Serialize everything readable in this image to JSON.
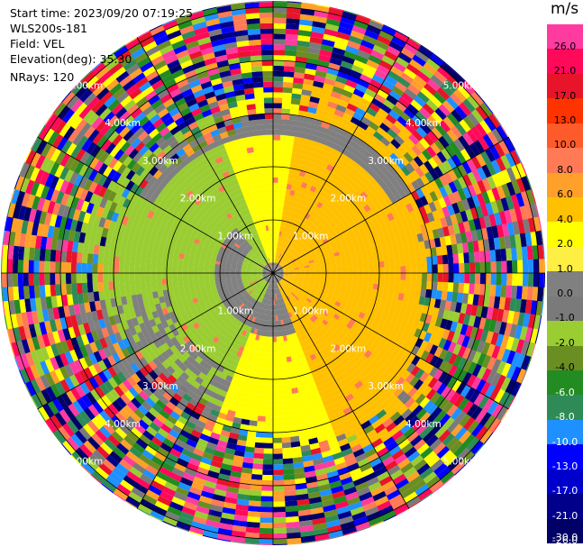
{
  "header": {
    "start_time": "Start time: 2023/09/20 07:19:25",
    "site": "WLS200s-181",
    "field": "Field: VEL",
    "elevation": "Elevation(deg): 35.30",
    "nrays": "NRays: 120"
  },
  "colorbar": {
    "unit": "m/s",
    "ticks": [
      "26.0",
      "21.0",
      "17.0",
      "13.0",
      "10.0",
      "8.0",
      "6.0",
      "4.0",
      "2.0",
      "1.0",
      "0.0",
      "-1.0",
      "-2.0",
      "-4.0",
      "-6.0",
      "-8.0",
      "-10.0",
      "-13.0",
      "-17.0",
      "-21.0",
      "-26.0",
      "-30.0"
    ],
    "colors": [
      "#ff3ba0",
      "#ff0a5a",
      "#e8142a",
      "#ff3300",
      "#ff5a2a",
      "#ff7a55",
      "#ffa02a",
      "#ffc000",
      "#ffff00",
      "#ffee44",
      "#808080",
      "#7a7a7a",
      "#9acd32",
      "#6b8e23",
      "#228b22",
      "#2e8b57",
      "#1e90ff",
      "#0000ff",
      "#0000cd",
      "#00008b",
      "#000066"
    ]
  },
  "chart_data": {
    "type": "ppi",
    "field": "VEL",
    "units": "m/s",
    "n_rays": 120,
    "elevation_deg": 35.3,
    "vmin": -30.0,
    "vmax": 26.0,
    "range_rings_km": [
      1.0,
      2.0,
      3.0,
      4.0,
      5.0
    ],
    "ring_labels": [
      "1.00km",
      "2.00km",
      "3.00km",
      "4.00km",
      "5.00km"
    ],
    "spoke_bearings_deg": [
      0,
      30,
      60,
      90,
      120,
      150,
      180,
      210,
      240,
      270,
      300,
      330
    ],
    "regions": [
      {
        "sector": "north",
        "range_km": [
          0,
          3.0
        ],
        "velocity_ms": 1.5
      },
      {
        "sector": "east",
        "range_km": [
          0,
          3.2
        ],
        "velocity_ms": 2.0
      },
      {
        "sector": "south",
        "range_km": [
          0,
          3.0
        ],
        "velocity_ms": -2.0
      },
      {
        "sector": "west",
        "range_km": [
          0,
          3.2
        ],
        "velocity_ms": -3.0
      },
      {
        "sector": "all",
        "range_km": [
          3.5,
          5.4
        ],
        "velocity_ms": "noise (mixed)"
      }
    ]
  }
}
